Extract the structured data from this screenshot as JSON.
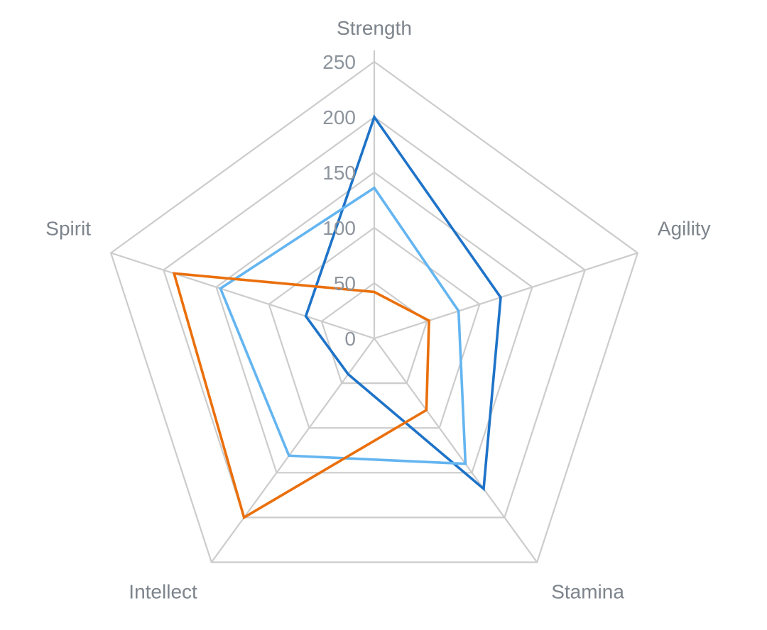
{
  "chart_data": {
    "type": "radar",
    "categories": [
      "Strength",
      "Agility",
      "Stamina",
      "Intellect",
      "Spirit"
    ],
    "rlim": [
      0,
      250
    ],
    "ticks": [
      "0",
      "50",
      "100",
      "150",
      "200",
      "250"
    ],
    "tick_values": [
      0,
      50,
      100,
      150,
      200,
      250
    ],
    "grid": true,
    "legend": "none",
    "series": [
      {
        "color": "#1e73c8",
        "values": [
          200,
          120,
          168,
          40,
          65
        ]
      },
      {
        "color": "#64b5f0",
        "values": [
          136,
          80,
          140,
          131,
          146
        ]
      },
      {
        "color": "#ea6f0c",
        "values": [
          42,
          52,
          80,
          200,
          190
        ]
      }
    ]
  }
}
